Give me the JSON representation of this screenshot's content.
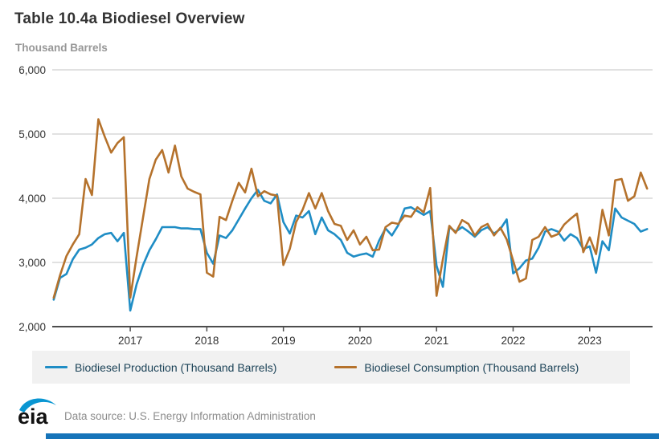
{
  "title": "Table 10.4a Biodiesel Overview",
  "units_label": "Thousand Barrels",
  "colors": {
    "production": "#1f8dc5",
    "consumption": "#b5722c",
    "gridline": "#cfcfcf",
    "axis": "#4d4d4d",
    "tick_label": "#333333",
    "bottom_bar": "#1674b9"
  },
  "legend": [
    {
      "label": "Biodiesel Production (Thousand Barrels)",
      "color": "#1f8dc5"
    },
    {
      "label": "Biodiesel Consumption (Thousand Barrels)",
      "color": "#b5722c"
    }
  ],
  "footer": {
    "logo_text": "eia",
    "data_source": "Data source: U.S. Energy Information Administration"
  },
  "chart_data": {
    "type": "line",
    "title": "Table 10.4a Biodiesel Overview",
    "ylabel": "Thousand Barrels",
    "ylim": [
      2000,
      6000
    ],
    "grid": true,
    "legend_position": "bottom",
    "y_ticks": [
      6000,
      5000,
      4000,
      3000,
      2000
    ],
    "y_tick_labels": [
      "6,000",
      "5,000",
      "4,000",
      "3,000",
      "2,000"
    ],
    "x_ticks": [
      "2017",
      "2018",
      "2019",
      "2020",
      "2021",
      "2022",
      "2023"
    ],
    "x": [
      "2016-01",
      "2016-02",
      "2016-03",
      "2016-04",
      "2016-05",
      "2016-06",
      "2016-07",
      "2016-08",
      "2016-09",
      "2016-10",
      "2016-11",
      "2016-12",
      "2017-01",
      "2017-02",
      "2017-03",
      "2017-04",
      "2017-05",
      "2017-06",
      "2017-07",
      "2017-08",
      "2017-09",
      "2017-10",
      "2017-11",
      "2017-12",
      "2018-01",
      "2018-02",
      "2018-03",
      "2018-04",
      "2018-05",
      "2018-06",
      "2018-07",
      "2018-08",
      "2018-09",
      "2018-10",
      "2018-11",
      "2018-12",
      "2019-01",
      "2019-02",
      "2019-03",
      "2019-04",
      "2019-05",
      "2019-06",
      "2019-07",
      "2019-08",
      "2019-09",
      "2019-10",
      "2019-11",
      "2019-12",
      "2020-01",
      "2020-02",
      "2020-03",
      "2020-04",
      "2020-05",
      "2020-06",
      "2020-07",
      "2020-08",
      "2020-09",
      "2020-10",
      "2020-11",
      "2020-12",
      "2021-01",
      "2021-02",
      "2021-03",
      "2021-04",
      "2021-05",
      "2021-06",
      "2021-07",
      "2021-08",
      "2021-09",
      "2021-10",
      "2021-11",
      "2021-12",
      "2022-01",
      "2022-02",
      "2022-03",
      "2022-04",
      "2022-05",
      "2022-06",
      "2022-07",
      "2022-08",
      "2022-09",
      "2022-10",
      "2022-11",
      "2022-12",
      "2023-01",
      "2023-02",
      "2023-03",
      "2023-04",
      "2023-05",
      "2023-06",
      "2023-07",
      "2023-08",
      "2023-09",
      "2023-10"
    ],
    "series": [
      {
        "name": "Biodiesel Production (Thousand Barrels)",
        "color": "#1f8dc5",
        "values": [
          2420,
          2760,
          2820,
          3050,
          3200,
          3230,
          3280,
          3380,
          3440,
          3460,
          3330,
          3460,
          2250,
          2660,
          2960,
          3190,
          3360,
          3550,
          3550,
          3550,
          3530,
          3530,
          3520,
          3520,
          3150,
          2980,
          3420,
          3380,
          3500,
          3670,
          3840,
          4000,
          4130,
          3960,
          3920,
          4060,
          3630,
          3450,
          3730,
          3700,
          3800,
          3440,
          3700,
          3500,
          3440,
          3350,
          3150,
          3090,
          3120,
          3140,
          3090,
          3340,
          3530,
          3420,
          3580,
          3840,
          3860,
          3800,
          3740,
          3800,
          2950,
          2620,
          3550,
          3480,
          3550,
          3480,
          3400,
          3500,
          3550,
          3450,
          3520,
          3670,
          2830,
          2910,
          3030,
          3060,
          3230,
          3480,
          3520,
          3480,
          3340,
          3440,
          3380,
          3210,
          3250,
          2840,
          3330,
          3190,
          3840,
          3700,
          3650,
          3600,
          3480,
          3520
        ]
      },
      {
        "name": "Biodiesel Consumption (Thousand Barrels)",
        "color": "#b5722c",
        "values": [
          2450,
          2800,
          3100,
          3280,
          3440,
          4300,
          4050,
          5230,
          4960,
          4710,
          4860,
          4950,
          2450,
          3090,
          3700,
          4300,
          4600,
          4750,
          4400,
          4820,
          4340,
          4150,
          4100,
          4060,
          2840,
          2780,
          3710,
          3660,
          3960,
          4240,
          4090,
          4460,
          4030,
          4110,
          4060,
          4040,
          2960,
          3210,
          3630,
          3820,
          4080,
          3840,
          4080,
          3800,
          3600,
          3570,
          3350,
          3500,
          3280,
          3400,
          3190,
          3200,
          3550,
          3620,
          3600,
          3730,
          3710,
          3860,
          3780,
          4160,
          2480,
          3050,
          3570,
          3460,
          3660,
          3600,
          3420,
          3550,
          3600,
          3420,
          3540,
          3360,
          3030,
          2700,
          2750,
          3350,
          3400,
          3550,
          3400,
          3440,
          3590,
          3680,
          3760,
          3160,
          3390,
          3130,
          3820,
          3420,
          4280,
          4300,
          3960,
          4030,
          4400,
          4150
        ]
      }
    ]
  }
}
